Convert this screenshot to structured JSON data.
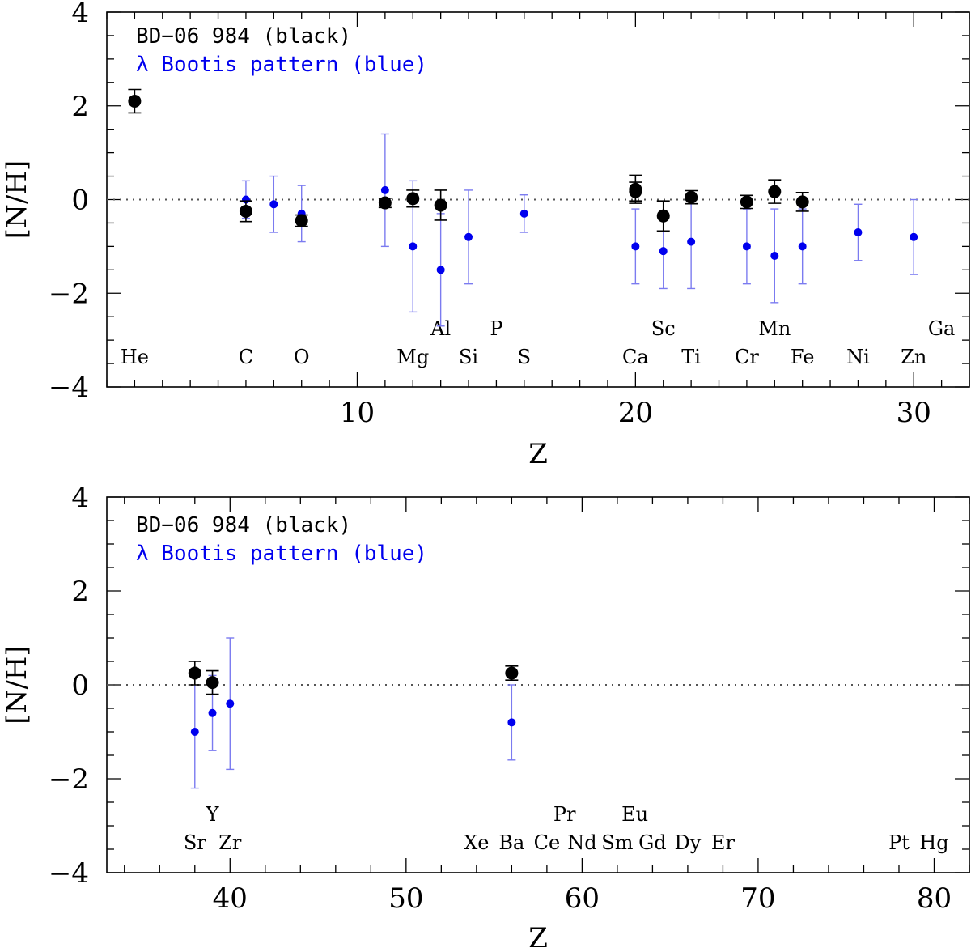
{
  "chart_data": [
    {
      "type": "scatter",
      "xlabel": "Z",
      "ylabel": "[N/H]",
      "xlim": [
        1,
        32
      ],
      "ylim": [
        -4,
        4
      ],
      "x_ticks": [
        10,
        20,
        30
      ],
      "y_ticks": [
        4,
        2,
        0,
        -2,
        -4
      ],
      "tick_labels": {
        "x": [
          "10",
          "20",
          "30"
        ],
        "y": [
          "4",
          "2",
          "0",
          "−2",
          "−4"
        ]
      },
      "legend": {
        "placement": "top-left",
        "entries": [
          "BD−06 984 (black)",
          "λ Bootis pattern (blue)"
        ]
      },
      "reference_line": {
        "y": 0,
        "style": "dotted"
      },
      "colors": {
        "star": "#000000",
        "pattern": "#0000ee",
        "pattern_errorbar": "#7b7bf0"
      },
      "series": [
        {
          "name": "BD−06 984 (black)",
          "points": [
            {
              "x": 2,
              "y": 2.1,
              "err": 0.25
            },
            {
              "x": 6,
              "y": -0.25,
              "err": 0.22
            },
            {
              "x": 8,
              "y": -0.45,
              "err": 0.12
            },
            {
              "x": 11,
              "y": -0.07,
              "err": 0.1
            },
            {
              "x": 12,
              "y": 0.02,
              "err": 0.18
            },
            {
              "x": 13,
              "y": -0.12,
              "err": 0.32
            },
            {
              "x": 20,
              "y": 0.22,
              "err": 0.3
            },
            {
              "x": 20,
              "y": 0.17,
              "err": 0.2
            },
            {
              "x": 21,
              "y": -0.35,
              "err": 0.32
            },
            {
              "x": 22,
              "y": 0.05,
              "err": 0.14
            },
            {
              "x": 24,
              "y": -0.05,
              "err": 0.14
            },
            {
              "x": 25,
              "y": 0.17,
              "err": 0.25
            },
            {
              "x": 26,
              "y": -0.05,
              "err": 0.2
            }
          ]
        },
        {
          "name": "λ Bootis pattern (blue)",
          "points": [
            {
              "x": 6,
              "y": 0.0,
              "err": 0.4
            },
            {
              "x": 7,
              "y": -0.1,
              "err": 0.6
            },
            {
              "x": 8,
              "y": -0.3,
              "err": 0.6
            },
            {
              "x": 11,
              "y": 0.2,
              "err": 1.2
            },
            {
              "x": 12,
              "y": -1.0,
              "err": 1.4
            },
            {
              "x": 13,
              "y": -1.5,
              "err": 1.2
            },
            {
              "x": 14,
              "y": -0.8,
              "err": 1.0
            },
            {
              "x": 16,
              "y": -0.3,
              "err": 0.4
            },
            {
              "x": 20,
              "y": -1.0,
              "err": 0.8
            },
            {
              "x": 21,
              "y": -1.1,
              "err": 0.8
            },
            {
              "x": 22,
              "y": -0.9,
              "err": 1.0
            },
            {
              "x": 24,
              "y": -1.0,
              "err": 0.8
            },
            {
              "x": 25,
              "y": -1.2,
              "err": 1.0
            },
            {
              "x": 26,
              "y": -1.0,
              "err": 0.8
            },
            {
              "x": 28,
              "y": -0.7,
              "err": 0.6
            },
            {
              "x": 30,
              "y": -0.8,
              "err": 0.8
            }
          ]
        }
      ],
      "element_labels": [
        {
          "text": "He",
          "x": 2,
          "row": "lower"
        },
        {
          "text": "C",
          "x": 6,
          "row": "lower"
        },
        {
          "text": "O",
          "x": 8,
          "row": "lower"
        },
        {
          "text": "Mg",
          "x": 12,
          "row": "lower"
        },
        {
          "text": "Al",
          "x": 13,
          "row": "upper"
        },
        {
          "text": "Si",
          "x": 14,
          "row": "lower"
        },
        {
          "text": "P",
          "x": 15,
          "row": "upper"
        },
        {
          "text": "S",
          "x": 16,
          "row": "lower"
        },
        {
          "text": "Ca",
          "x": 20,
          "row": "lower"
        },
        {
          "text": "Sc",
          "x": 21,
          "row": "upper"
        },
        {
          "text": "Ti",
          "x": 22,
          "row": "lower"
        },
        {
          "text": "Cr",
          "x": 24,
          "row": "lower"
        },
        {
          "text": "Mn",
          "x": 25,
          "row": "upper"
        },
        {
          "text": "Fe",
          "x": 26,
          "row": "lower"
        },
        {
          "text": "Ni",
          "x": 28,
          "row": "lower"
        },
        {
          "text": "Zn",
          "x": 30,
          "row": "lower"
        },
        {
          "text": "Ga",
          "x": 31,
          "row": "upper"
        }
      ]
    },
    {
      "type": "scatter",
      "xlabel": "Z",
      "ylabel": "[N/H]",
      "xlim": [
        33,
        82
      ],
      "ylim": [
        -4,
        4
      ],
      "x_ticks": [
        40,
        50,
        60,
        70,
        80
      ],
      "y_ticks": [
        4,
        2,
        0,
        -2,
        -4
      ],
      "tick_labels": {
        "x": [
          "40",
          "50",
          "60",
          "70",
          "80"
        ],
        "y": [
          "4",
          "2",
          "0",
          "−2",
          "−4"
        ]
      },
      "legend": {
        "placement": "top-left",
        "entries": [
          "BD−06 984 (black)",
          "λ Bootis pattern (blue)"
        ]
      },
      "reference_line": {
        "y": 0,
        "style": "dotted"
      },
      "colors": {
        "star": "#000000",
        "pattern": "#0000ee",
        "pattern_errorbar": "#7b7bf0"
      },
      "series": [
        {
          "name": "BD−06 984 (black)",
          "points": [
            {
              "x": 38,
              "y": 0.25,
              "err": 0.25
            },
            {
              "x": 39,
              "y": 0.05,
              "err": 0.25
            },
            {
              "x": 56,
              "y": 0.25,
              "err": 0.15
            }
          ]
        },
        {
          "name": "λ Bootis pattern (blue)",
          "points": [
            {
              "x": 38,
              "y": -1.0,
              "err": 1.2
            },
            {
              "x": 39,
              "y": -0.6,
              "err": 0.8
            },
            {
              "x": 40,
              "y": -0.4,
              "err": 1.4
            },
            {
              "x": 56,
              "y": -0.8,
              "err": 0.8
            }
          ]
        }
      ],
      "element_labels": [
        {
          "text": "Sr",
          "x": 38,
          "row": "lower"
        },
        {
          "text": "Y",
          "x": 39,
          "row": "upper"
        },
        {
          "text": "Zr",
          "x": 40,
          "row": "lower"
        },
        {
          "text": "Xe",
          "x": 54,
          "row": "lower"
        },
        {
          "text": "Ba",
          "x": 56,
          "row": "lower"
        },
        {
          "text": "Ce",
          "x": 58,
          "row": "lower"
        },
        {
          "text": "Pr",
          "x": 59,
          "row": "upper"
        },
        {
          "text": "Nd",
          "x": 60,
          "row": "lower"
        },
        {
          "text": "Sm",
          "x": 62,
          "row": "lower"
        },
        {
          "text": "Eu",
          "x": 63,
          "row": "upper"
        },
        {
          "text": "Gd",
          "x": 64,
          "row": "lower"
        },
        {
          "text": "Dy",
          "x": 66,
          "row": "lower"
        },
        {
          "text": "Er",
          "x": 68,
          "row": "lower"
        },
        {
          "text": "Pt",
          "x": 78,
          "row": "lower"
        },
        {
          "text": "Hg",
          "x": 80,
          "row": "lower"
        }
      ]
    }
  ]
}
